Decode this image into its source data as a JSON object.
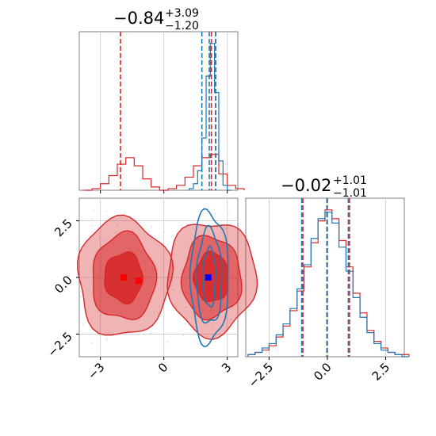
{
  "colors": {
    "red": "#d62728",
    "blue": "#1f77b4",
    "marker_blue": "#0000ff",
    "marker_red": "#ff0000",
    "grid": "#c8c8c8",
    "axis": "#808080"
  },
  "chart_data": [
    {
      "id": "hist-p1",
      "type": "histogram",
      "title": {
        "main": "−0.84",
        "upper": "+3.09",
        "lower": "−1.20"
      },
      "xlim": [
        -4.0,
        3.5
      ],
      "series": [
        {
          "name": "",
          "color": "#d62728",
          "bins": [
            -3.8,
            -3.4,
            -3.0,
            -2.6,
            -2.2,
            -1.8,
            -1.4,
            -1.0,
            -0.6,
            -0.2,
            0.2,
            0.6,
            1.0,
            1.4,
            1.8,
            2.2,
            2.6,
            3.0,
            3.4
          ],
          "counts": [
            0,
            1,
            4,
            9,
            16,
            20,
            15,
            7,
            2,
            0,
            1,
            3,
            8,
            15,
            20,
            22,
            10,
            3,
            1
          ],
          "quantiles": [
            -2.05,
            2.25,
            2.45
          ]
        },
        {
          "name": "",
          "color": "#1f77b4",
          "bins": [
            1.2,
            1.4,
            1.6,
            1.8,
            2.0,
            2.2,
            2.4,
            2.6,
            2.8,
            3.0
          ],
          "counts": [
            1,
            4,
            12,
            32,
            70,
            90,
            60,
            18,
            3,
            0
          ],
          "quantiles": [
            1.8,
            2.15,
            2.45
          ]
        }
      ],
      "xticks": [
        -3,
        0,
        3
      ]
    },
    {
      "id": "hist-p2",
      "type": "histogram",
      "title": {
        "main": "−0.02",
        "upper": "+1.01",
        "lower": "−1.01"
      },
      "xlim": [
        -3.5,
        3.3
      ],
      "series": [
        {
          "name": "",
          "color": "#d62728",
          "bins": [
            -3.4,
            -3.1,
            -2.8,
            -2.5,
            -2.2,
            -1.9,
            -1.6,
            -1.3,
            -1.0,
            -0.7,
            -0.4,
            -0.1,
            0.2,
            0.5,
            0.8,
            1.1,
            1.4,
            1.7,
            2.0,
            2.3,
            2.6,
            2.9,
            3.2
          ],
          "counts": [
            1,
            2,
            3,
            5,
            9,
            14,
            21,
            30,
            41,
            52,
            62,
            67,
            63,
            53,
            41,
            29,
            20,
            12,
            7,
            4,
            2,
            1,
            1
          ],
          "quantiles": [
            -1.05,
            -0.02,
            0.95
          ]
        },
        {
          "name": "",
          "color": "#1f77b4",
          "bins": [
            -3.4,
            -3.1,
            -2.8,
            -2.5,
            -2.2,
            -1.9,
            -1.6,
            -1.3,
            -1.0,
            -0.7,
            -0.4,
            -0.1,
            0.2,
            0.5,
            0.8,
            1.1,
            1.4,
            1.7,
            2.0,
            2.3,
            2.6,
            2.9,
            3.2
          ],
          "counts": [
            1,
            2,
            4,
            6,
            10,
            15,
            22,
            31,
            42,
            54,
            63,
            66,
            61,
            50,
            39,
            27,
            18,
            11,
            6,
            3,
            2,
            1,
            0
          ],
          "quantiles": [
            -1.1,
            0.0,
            0.9
          ]
        }
      ],
      "xticks": [
        -2.5,
        0.0,
        2.5
      ],
      "xtick_labels": [
        "−2.5",
        "0.0",
        "2.5"
      ]
    },
    {
      "id": "scatter-p1-p2",
      "type": "scatter",
      "xlim": [
        -4.0,
        3.5
      ],
      "ylim": [
        -3.5,
        3.5
      ],
      "xticks": [
        -3,
        0,
        3
      ],
      "xtick_labels": [
        "−3",
        "0",
        "3"
      ],
      "yticks": [
        2.5,
        0.0,
        -2.5
      ],
      "ytick_labels": [
        "2.5",
        "0.0",
        "−2.5"
      ],
      "red_modes": [
        {
          "cx": -1.9,
          "cy": 0.0,
          "rx_levels": [
            2.2,
            1.5,
            0.9
          ],
          "ry_levels": [
            2.6,
            1.9,
            1.1
          ]
        },
        {
          "cx": 2.25,
          "cy": 0.0,
          "rx_levels": [
            2.1,
            1.4,
            0.8
          ],
          "ry_levels": [
            2.5,
            1.8,
            1.1
          ]
        }
      ],
      "blue_mode": {
        "cx": 2.15,
        "cy": 0.0,
        "rx_levels": [
          0.9,
          0.6,
          0.3
        ],
        "ry_levels": [
          2.9,
          2.1,
          1.3
        ]
      },
      "markers": [
        {
          "x": -1.9,
          "y": 0.0,
          "color": "#ff0000"
        },
        {
          "x": -1.2,
          "y": -0.15,
          "color": "#ff0000"
        },
        {
          "x": 2.1,
          "y": 0.0,
          "color": "#0000ff"
        }
      ]
    }
  ]
}
